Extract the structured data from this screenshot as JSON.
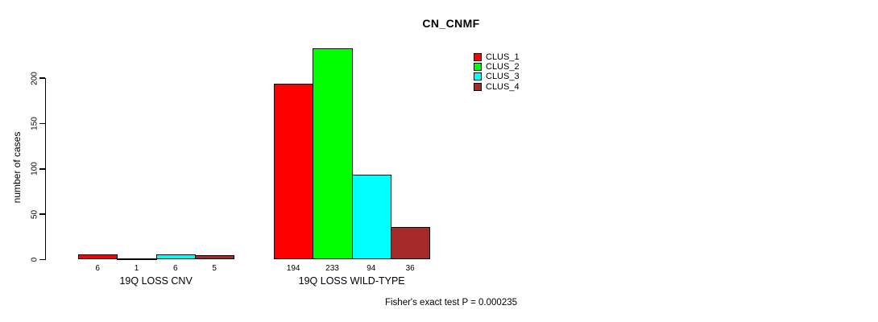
{
  "chart_data": {
    "type": "bar",
    "title": "CN_CNMF",
    "ylabel": "number of cases",
    "ylim": [
      0,
      200
    ],
    "yticks": [
      0,
      50,
      100,
      150,
      200
    ],
    "grid": false,
    "legend_position": "top-right",
    "categories": [
      "19Q LOSS CNV",
      "19Q LOSS WILD-TYPE"
    ],
    "series": [
      {
        "name": "CLUS_1",
        "color": "#FF0000",
        "values": [
          6,
          194
        ]
      },
      {
        "name": "CLUS_2",
        "color": "#00FF00",
        "values": [
          1,
          233
        ]
      },
      {
        "name": "CLUS_3",
        "color": "#00FFFF",
        "values": [
          6,
          94
        ]
      },
      {
        "name": "CLUS_4",
        "color": "#A52A2A",
        "values": [
          5,
          36
        ]
      }
    ],
    "annotation": "Fisher's exact test P = 0.000235"
  }
}
